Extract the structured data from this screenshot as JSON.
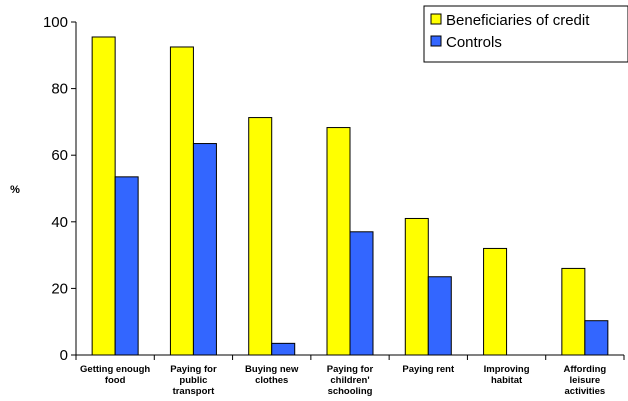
{
  "chart_data": {
    "type": "bar",
    "categories": [
      [
        "Getting enough",
        "food"
      ],
      [
        "Paying for",
        "public",
        "transport"
      ],
      [
        "Buying new",
        "clothes"
      ],
      [
        "Paying for",
        "children'",
        "schooling"
      ],
      [
        "Paying rent"
      ],
      [
        "Improving",
        "habitat"
      ],
      [
        "Affording",
        "leisure",
        "activities"
      ]
    ],
    "series": [
      {
        "name": "Beneficiaries of credit",
        "color": "#ffff00",
        "values": [
          95.5,
          92.5,
          71.3,
          68.3,
          41.0,
          32.0,
          26.0
        ]
      },
      {
        "name": "Controls",
        "color": "#3366ff",
        "values": [
          53.5,
          63.5,
          3.5,
          37.0,
          23.5,
          null,
          10.3
        ]
      }
    ],
    "title": "",
    "xlabel": "",
    "ylabel": "%",
    "ylim": [
      0,
      100
    ],
    "yticks": [
      "0",
      "20",
      "40",
      "60",
      "80",
      "100"
    ],
    "grid": false,
    "legend_position": "top-right"
  }
}
